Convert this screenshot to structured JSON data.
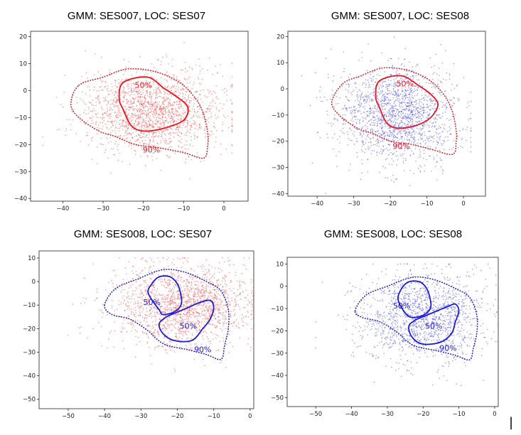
{
  "colors": {
    "ses07_points": "#ff3b3b",
    "ses08_points": "#3f3fff",
    "ses07_contour": "#e8141e",
    "ses08_contour": "#1a1ad8"
  },
  "cursor_glyph": "|",
  "chart_data": [
    {
      "type": "scatter",
      "title": "GMM: SES007, LOC: SES07",
      "xlabel": "",
      "ylabel": "",
      "xlim": [
        -48,
        6
      ],
      "ylim": [
        -41,
        22
      ],
      "xticks": [
        -40,
        -30,
        -20,
        -10,
        0
      ],
      "yticks": [
        20,
        10,
        0,
        -10,
        -20,
        -30,
        -40
      ],
      "grid": false,
      "point_color": "#ff3b3b",
      "contour_color": "#e8141e",
      "point_cloud": {
        "center": [
          -18,
          -8
        ],
        "spread": [
          8.5,
          7.5
        ],
        "x_range": [
          -45,
          2
        ],
        "y_range": [
          -40,
          20
        ],
        "count": 1800
      },
      "contours": [
        {
          "label": "50%",
          "style": "solid",
          "label_at": [
            -20,
            1
          ],
          "path": [
            [
              -25,
              3
            ],
            [
              -19,
              5
            ],
            [
              -15,
              1
            ],
            [
              -12,
              -2
            ],
            [
              -9,
              -6
            ],
            [
              -10,
              -11
            ],
            [
              -15,
              -14
            ],
            [
              -20,
              -15
            ],
            [
              -23,
              -13
            ],
            [
              -25,
              -7
            ],
            [
              -26,
              -3
            ]
          ]
        },
        {
          "label": "90%",
          "style": "dotted",
          "label_at": [
            -18,
            -23
          ],
          "path": [
            [
              -36,
              2
            ],
            [
              -30,
              5
            ],
            [
              -24,
              8
            ],
            [
              -17,
              7
            ],
            [
              -11,
              3
            ],
            [
              -7,
              -3
            ],
            [
              -5,
              -9
            ],
            [
              -4,
              -16
            ],
            [
              -4,
              -20
            ],
            [
              -5,
              -25
            ],
            [
              -10,
              -23
            ],
            [
              -17,
              -21
            ],
            [
              -22,
              -20
            ],
            [
              -27,
              -17
            ],
            [
              -31,
              -15
            ],
            [
              -36,
              -10
            ],
            [
              -38,
              -5
            ]
          ]
        }
      ]
    },
    {
      "type": "scatter",
      "title": "GMM: SES007, LOC: SES08",
      "xlabel": "",
      "ylabel": "",
      "xlim": [
        -48,
        6
      ],
      "ylim": [
        -41,
        22
      ],
      "xticks": [
        -40,
        -30,
        -20,
        -10,
        0
      ],
      "yticks": [
        20,
        10,
        0,
        -10,
        -20,
        -30,
        -40
      ],
      "grid": false,
      "point_color": "#3f3fff",
      "contour_color": "#e8141e",
      "point_cloud": {
        "center": [
          -18,
          -10
        ],
        "spread": [
          8,
          9
        ],
        "x_range": [
          -46,
          2
        ],
        "y_range": [
          -40,
          20
        ],
        "count": 1800
      },
      "contours": [
        {
          "label": "50%",
          "style": "solid",
          "label_at": [
            -16,
            1
          ],
          "path": [
            [
              -23,
              3
            ],
            [
              -17,
              5
            ],
            [
              -12,
              1
            ],
            [
              -9,
              -2
            ],
            [
              -7,
              -6
            ],
            [
              -9,
              -11
            ],
            [
              -13,
              -14
            ],
            [
              -18,
              -15
            ],
            [
              -21,
              -13
            ],
            [
              -23,
              -7
            ],
            [
              -24,
              -3
            ]
          ]
        },
        {
          "label": "90%",
          "style": "dotted",
          "label_at": [
            -17,
            -23
          ],
          "path": [
            [
              -33,
              2
            ],
            [
              -28,
              5
            ],
            [
              -22,
              8
            ],
            [
              -15,
              7
            ],
            [
              -9,
              3
            ],
            [
              -5,
              -3
            ],
            [
              -3,
              -9
            ],
            [
              -2,
              -16
            ],
            [
              -2,
              -20
            ],
            [
              -3,
              -25
            ],
            [
              -9,
              -23
            ],
            [
              -15,
              -21
            ],
            [
              -20,
              -20
            ],
            [
              -25,
              -17
            ],
            [
              -29,
              -15
            ],
            [
              -34,
              -10
            ],
            [
              -36,
              -5
            ]
          ]
        }
      ]
    },
    {
      "type": "scatter",
      "title": "GMM: SES008, LOC: SES07",
      "xlabel": "",
      "ylabel": "",
      "xlim": [
        -58,
        1
      ],
      "ylim": [
        -54,
        13
      ],
      "xticks": [
        -50,
        -40,
        -30,
        -20,
        -10,
        0
      ],
      "yticks": [
        10,
        0,
        -10,
        -20,
        -30,
        -40,
        -50
      ],
      "grid": false,
      "point_color": "#ff3b3b",
      "contour_color": "#1a1ad8",
      "point_cloud": {
        "center": [
          -18,
          -10
        ],
        "spread": [
          10,
          9
        ],
        "x_range": [
          -50,
          1
        ],
        "y_range": [
          -45,
          10
        ],
        "count": 1800
      },
      "contours": [
        {
          "label": "50%",
          "style": "solid",
          "label_at": [
            -27,
            -10
          ],
          "path": [
            [
              -28,
              -5
            ],
            [
              -27,
              -1
            ],
            [
              -25,
              2
            ],
            [
              -22,
              2
            ],
            [
              -20,
              -1
            ],
            [
              -19,
              -6
            ],
            [
              -19,
              -10
            ],
            [
              -21,
              -13
            ],
            [
              -24,
              -14
            ],
            [
              -25,
              -12
            ]
          ]
        },
        {
          "label": "50%",
          "style": "solid",
          "label_at": [
            -17,
            -20
          ],
          "path": [
            [
              -16,
              -25
            ],
            [
              -21,
              -25
            ],
            [
              -24,
              -22
            ],
            [
              -25,
              -18
            ],
            [
              -23,
              -15
            ],
            [
              -20,
              -13
            ],
            [
              -17,
              -11
            ],
            [
              -14,
              -9
            ],
            [
              -11,
              -8
            ],
            [
              -10,
              -11
            ],
            [
              -11,
              -16
            ],
            [
              -13,
              -20
            ]
          ]
        },
        {
          "label": "90%",
          "style": "dotted",
          "label_at": [
            -13,
            -30
          ],
          "path": [
            [
              -40,
              -10
            ],
            [
              -37,
              -3
            ],
            [
              -31,
              1
            ],
            [
              -24,
              5
            ],
            [
              -18,
              4
            ],
            [
              -12,
              0
            ],
            [
              -8,
              -4
            ],
            [
              -6,
              -12
            ],
            [
              -6,
              -20
            ],
            [
              -7,
              -27
            ],
            [
              -8,
              -33
            ],
            [
              -12,
              -31
            ],
            [
              -17,
              -29
            ],
            [
              -23,
              -27
            ],
            [
              -26,
              -24
            ],
            [
              -28,
              -21
            ],
            [
              -33,
              -16
            ],
            [
              -38,
              -14
            ]
          ]
        }
      ]
    },
    {
      "type": "scatter",
      "title": "GMM: SES008, LOC: SES08",
      "xlabel": "",
      "ylabel": "",
      "xlim": [
        -58,
        1
      ],
      "ylim": [
        -54,
        13
      ],
      "xticks": [
        -50,
        -40,
        -30,
        -20,
        -10,
        0
      ],
      "yticks": [
        10,
        0,
        -10,
        -20,
        -30,
        -40,
        -50
      ],
      "grid": false,
      "point_color": "#3f3fff",
      "contour_color": "#1a1ad8",
      "point_cloud": {
        "center": [
          -20,
          -14
        ],
        "spread": [
          9,
          10
        ],
        "x_range": [
          -50,
          1
        ],
        "y_range": [
          -45,
          10
        ],
        "count": 1500
      },
      "contours": [
        {
          "label": "50%",
          "style": "solid",
          "label_at": [
            -26,
            -10
          ],
          "path": [
            [
              -27,
              -6
            ],
            [
              -26,
              -1
            ],
            [
              -24,
              2
            ],
            [
              -21,
              2
            ],
            [
              -19,
              -1
            ],
            [
              -18,
              -6
            ],
            [
              -18,
              -10
            ],
            [
              -20,
              -13
            ],
            [
              -23,
              -14
            ],
            [
              -25,
              -12
            ]
          ]
        },
        {
          "label": "50%",
          "style": "solid",
          "label_at": [
            -17,
            -19
          ],
          "path": [
            [
              -15,
              -25
            ],
            [
              -20,
              -26
            ],
            [
              -23,
              -23
            ],
            [
              -24,
              -18
            ],
            [
              -22,
              -15
            ],
            [
              -19,
              -13
            ],
            [
              -16,
              -11
            ],
            [
              -13,
              -9
            ],
            [
              -11,
              -8
            ],
            [
              -10,
              -11
            ],
            [
              -11,
              -16
            ],
            [
              -12,
              -21
            ]
          ]
        },
        {
          "label": "90%",
          "style": "dotted",
          "label_at": [
            -13,
            -29
          ],
          "path": [
            [
              -39,
              -11
            ],
            [
              -36,
              -4
            ],
            [
              -30,
              0
            ],
            [
              -23,
              4
            ],
            [
              -17,
              3
            ],
            [
              -11,
              -1
            ],
            [
              -7,
              -5
            ],
            [
              -5,
              -13
            ],
            [
              -5,
              -21
            ],
            [
              -6,
              -28
            ],
            [
              -7,
              -33
            ],
            [
              -11,
              -31
            ],
            [
              -16,
              -29
            ],
            [
              -22,
              -27
            ],
            [
              -25,
              -24
            ],
            [
              -27,
              -21
            ],
            [
              -32,
              -16
            ],
            [
              -37,
              -14
            ]
          ]
        }
      ]
    }
  ]
}
